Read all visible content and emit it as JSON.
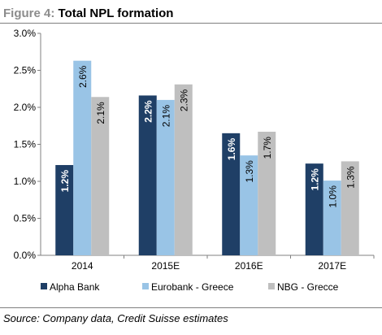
{
  "figure": {
    "label": "Figure 4:",
    "title": "Total NPL formation",
    "source": "Source: Company data, Credit Suisse estimates"
  },
  "colors": {
    "alpha_bank": "#1f3f66",
    "eurobank": "#99c4e6",
    "nbg": "#bfbfbf",
    "axis": "#808080",
    "bar_label_dark": "#ffffff",
    "bar_label_light": "#000000"
  },
  "chart_data": {
    "type": "bar",
    "title": "Total NPL formation",
    "categories": [
      "2014",
      "2015E",
      "2016E",
      "2017E"
    ],
    "series": [
      {
        "name": "Alpha Bank",
        "values": [
          1.22,
          2.16,
          1.65,
          1.24
        ],
        "labels": [
          "1.2%",
          "2.2%",
          "1.6%",
          "1.2%"
        ]
      },
      {
        "name": "Eurobank - Greece",
        "values": [
          2.63,
          2.1,
          1.35,
          1.01
        ],
        "labels": [
          "2.6%",
          "2.1%",
          "1.3%",
          "1.0%"
        ]
      },
      {
        "name": "NBG - Grecce",
        "values": [
          2.14,
          2.31,
          1.67,
          1.27
        ],
        "labels": [
          "2.1%",
          "2.3%",
          "1.7%",
          "1.3%"
        ]
      }
    ],
    "yticks": [
      "0.0%",
      "0.5%",
      "1.0%",
      "1.5%",
      "2.0%",
      "2.5%",
      "3.0%"
    ],
    "ylim": [
      0,
      3.0
    ],
    "grid": false,
    "legend_position": "bottom"
  }
}
